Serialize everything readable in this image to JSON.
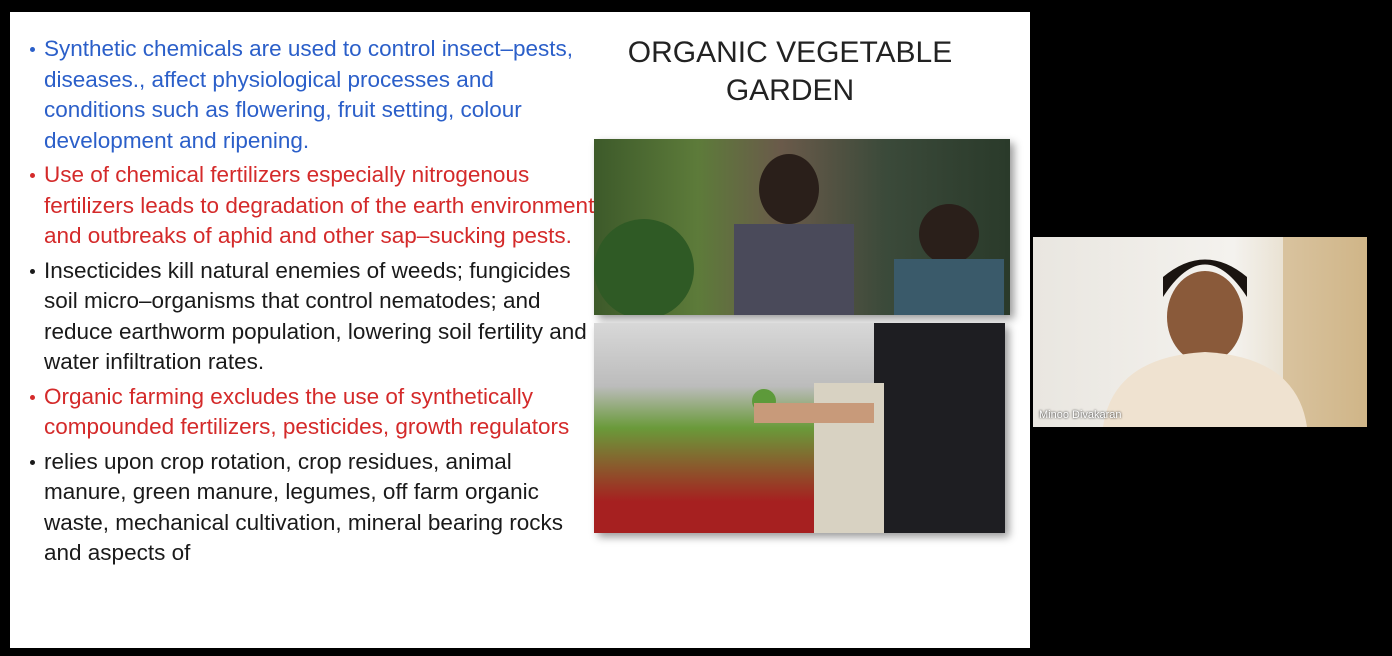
{
  "slide": {
    "title": "ORGANIC VEGETABLE GARDEN",
    "bullets": [
      {
        "text": "Synthetic chemicals are used to control insect–pests, diseases., affect physiological processes and conditions such as flowering, fruit setting, colour development and ripening.",
        "color": "#2b5fc9"
      },
      {
        "text": "Use of chemical fertilizers especially nitrogenous fertilizers leads to degradation of the earth environment and outbreaks of aphid and other sap–sucking pests.",
        "color": "#d42a2a"
      },
      {
        "text": "Insecticides kill natural enemies of weeds; fungicides soil micro–organisms that control nematodes; and reduce earthworm population, lowering soil fertility and water infiltration rates.",
        "color": "#1a1a1a"
      },
      {
        "text": "Organic farming excludes the use of synthetically compounded fertilizers, pesticides, growth regulators",
        "color": "#d42a2a"
      },
      {
        "text": "relies upon crop rotation, crop residues, animal manure, green manure, legumes, off farm organic waste, mechanical cultivation, mineral bearing rocks and aspects of",
        "color": "#1a1a1a"
      }
    ]
  },
  "participant": {
    "name": "Minoo Divakaran"
  }
}
